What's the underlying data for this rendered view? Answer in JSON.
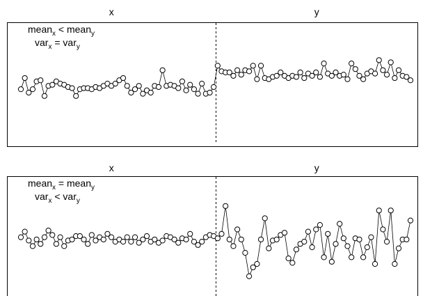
{
  "chart_data": [
    {
      "type": "line",
      "series_labels": {
        "left": "x",
        "right": "y"
      },
      "annotation": {
        "line1": {
          "base": "mean",
          "sub": "x",
          "op": " < ",
          "base2": "mean",
          "sub2": "y"
        },
        "line2": {
          "base": "var",
          "sub": "x",
          "op": " = ",
          "base2": "var",
          "sub2": "y"
        }
      },
      "ylim": [
        -5,
        5
      ],
      "split_index": 50,
      "markers": "open-circle",
      "x": [
        -0.6,
        0.4,
        -0.9,
        -0.6,
        0.1,
        0.2,
        -1.2,
        -0.3,
        -0.2,
        0.1,
        -0.1,
        -0.2,
        -0.4,
        -0.5,
        -1.2,
        -0.6,
        -0.5,
        -0.5,
        -0.6,
        -0.4,
        -0.5,
        -0.3,
        -0.1,
        -0.3,
        -0.1,
        0.2,
        0.4,
        -0.3,
        -0.9,
        -0.6,
        -0.3,
        -1.0,
        -0.7,
        -0.9,
        -0.3,
        -0.4,
        1.1,
        -0.3,
        -0.2,
        -0.3,
        -0.5,
        0.1,
        -0.7,
        -0.2,
        -0.6,
        -1.0,
        -0.1,
        -1.0,
        -0.9,
        -0.4
      ],
      "y": [
        1.5,
        1.0,
        0.9,
        0.9,
        0.6,
        1.1,
        0.7,
        1.1,
        1.0,
        1.5,
        0.3,
        1.5,
        0.4,
        0.3,
        0.5,
        0.6,
        0.9,
        0.6,
        0.4,
        0.6,
        0.5,
        0.9,
        0.4,
        0.8,
        0.6,
        0.9,
        0.5,
        1.7,
        0.8,
        0.6,
        0.9,
        0.6,
        0.7,
        0.3,
        1.7,
        1.2,
        0.6,
        0.3,
        0.8,
        1.0,
        0.8,
        2.0,
        1.1,
        0.7,
        1.8,
        0.4,
        1.1,
        0.6,
        0.5,
        0.2
      ]
    },
    {
      "type": "line",
      "series_labels": {
        "left": "x",
        "right": "y"
      },
      "annotation": {
        "line1": {
          "base": "mean",
          "sub": "x",
          "op": " = ",
          "base2": "mean",
          "sub2": "y"
        },
        "line2": {
          "base": "var",
          "sub": "x",
          "op": " < ",
          "base2": "var",
          "sub2": "y"
        }
      },
      "ylim": [
        -5,
        5
      ],
      "split_index": 50,
      "markers": "open-circle",
      "x": [
        -0.1,
        0.4,
        -0.4,
        -0.9,
        -0.3,
        -0.7,
        -0.1,
        0.5,
        0.1,
        -0.7,
        -0.1,
        -0.9,
        -0.4,
        -0.3,
        0.0,
        0.0,
        -0.3,
        -0.7,
        0.1,
        -0.4,
        -0.1,
        -0.3,
        0.2,
        -0.1,
        -0.5,
        -0.3,
        -0.5,
        -0.1,
        -0.5,
        -0.1,
        -0.6,
        -0.3,
        0.0,
        -0.5,
        -0.3,
        -0.6,
        -0.4,
        0.0,
        -0.1,
        -0.3,
        -0.6,
        -0.2,
        -0.3,
        0.2,
        -0.5,
        -0.8,
        -0.5,
        -0.1,
        0.1,
        0.0
      ],
      "y": [
        -0.2,
        0.2,
        2.7,
        -0.3,
        -0.9,
        0.6,
        -0.3,
        -1.5,
        -3.6,
        -2.8,
        -2.5,
        -0.3,
        1.6,
        -1.1,
        -0.4,
        -0.3,
        0.1,
        0.3,
        -2.0,
        -2.4,
        -1.2,
        -0.7,
        -0.5,
        0.4,
        -1.0,
        0.6,
        1.0,
        -1.9,
        0.2,
        -2.3,
        -0.7,
        1.1,
        -0.2,
        -0.9,
        -1.9,
        -0.2,
        -0.3,
        -1.9,
        -1.0,
        -0.1,
        -2.5,
        2.3,
        0.6,
        -0.5,
        2.3,
        -2.5,
        -1.1,
        -0.3,
        -0.3,
        1.4
      ]
    }
  ]
}
